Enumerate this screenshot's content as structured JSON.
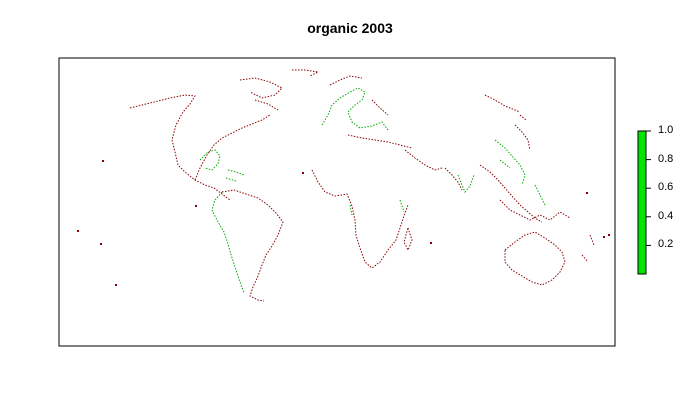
{
  "title": "organic 2003",
  "legend": {
    "ticks": [
      "0.2",
      "0.4",
      "0.6",
      "0.8",
      "1.0"
    ],
    "tick_values": [
      0.2,
      0.4,
      0.6,
      0.8,
      1.0
    ],
    "range": [
      0,
      1
    ],
    "color": "#00e600"
  },
  "colors": {
    "coast_low": "#8b0000",
    "coast_high": "#00cc00",
    "frame": "#000000"
  }
}
